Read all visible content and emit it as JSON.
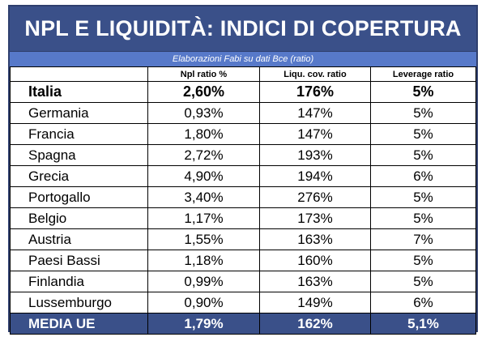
{
  "title": "NPL E LIQUIDITÀ: INDICI DI COPERTURA",
  "subtitle": "Elaborazioni Fabi su dati Bce (ratio)",
  "columns": [
    "",
    "Npl ratio %",
    "Liqu. cov. ratio",
    "Leverage ratio"
  ],
  "rows": [
    {
      "country": "Italia",
      "npl": "2,60%",
      "lcr": "176%",
      "lev": "5%"
    },
    {
      "country": "Germania",
      "npl": "0,93%",
      "lcr": "147%",
      "lev": "5%"
    },
    {
      "country": "Francia",
      "npl": "1,80%",
      "lcr": "147%",
      "lev": "5%"
    },
    {
      "country": "Spagna",
      "npl": "2,72%",
      "lcr": "193%",
      "lev": "5%"
    },
    {
      "country": "Grecia",
      "npl": "4,90%",
      "lcr": "194%",
      "lev": "6%"
    },
    {
      "country": "Portogallo",
      "npl": "3,40%",
      "lcr": "276%",
      "lev": "5%"
    },
    {
      "country": "Belgio",
      "npl": "1,17%",
      "lcr": "173%",
      "lev": "5%"
    },
    {
      "country": "Austria",
      "npl": "1,55%",
      "lcr": "163%",
      "lev": "7%"
    },
    {
      "country": "Paesi Bassi",
      "npl": "1,18%",
      "lcr": "160%",
      "lev": "5%"
    },
    {
      "country": "Finlandia",
      "npl": "0,99%",
      "lcr": "163%",
      "lev": "5%"
    },
    {
      "country": "Lussemburgo",
      "npl": "0,90%",
      "lcr": "149%",
      "lev": "6%"
    }
  ],
  "average": {
    "country": "MEDIA UE",
    "npl": "1,79%",
    "lcr": "162%",
    "lev": "5,1%"
  },
  "colors": {
    "title_bg": "#3a5089",
    "subtitle_bg": "#5779c9",
    "average_bg": "#3a5089"
  }
}
